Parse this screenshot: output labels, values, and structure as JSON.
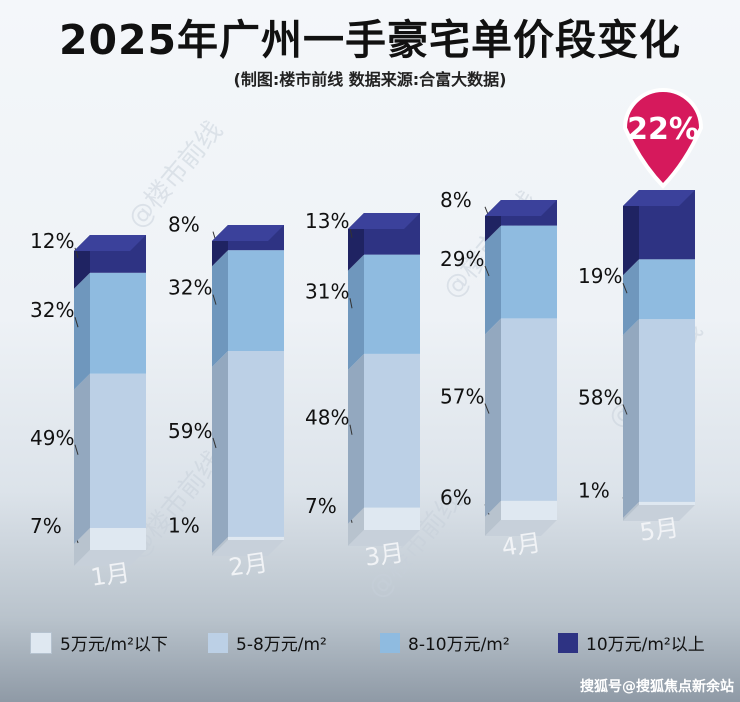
{
  "title": "2025年广州一手豪宅单价段变化",
  "subtitle": "(制图:楼市前线  数据来源:合富大数据)",
  "watermark": "搜狐号@搜狐焦点新余站",
  "bg_watermark": "@楼市前线",
  "highlight": {
    "month_index": 4,
    "label": "22%",
    "color": "#d6195c"
  },
  "colors": {
    "seg0": "#dfe8f1",
    "seg1": "#bcd0e6",
    "seg2": "#8fbbe0",
    "seg3": "#2e3383"
  },
  "legend": [
    {
      "label": "5万元/m²以下",
      "color": "#dfe8f1"
    },
    {
      "label": "5-8万元/m²",
      "color": "#bcd0e6"
    },
    {
      "label": "8-10万元/m²",
      "color": "#8fbbe0"
    },
    {
      "label": "10万元/m²以上",
      "color": "#2e3383"
    }
  ],
  "chart_data": {
    "type": "bar",
    "stacked": true,
    "categories": [
      "1月",
      "2月",
      "3月",
      "4月",
      "5月"
    ],
    "series": [
      {
        "name": "5万元/m²以下",
        "values": [
          7,
          1,
          7,
          6,
          1
        ],
        "labels": [
          "7%",
          "1%",
          "7%",
          "6%",
          "1%"
        ]
      },
      {
        "name": "5-8万元/m²",
        "values": [
          49,
          59,
          48,
          57,
          58
        ],
        "labels": [
          "49%",
          "59%",
          "48%",
          "57%",
          "58%"
        ]
      },
      {
        "name": "8-10万元/m²",
        "values": [
          32,
          32,
          31,
          29,
          19
        ],
        "labels": [
          "32%",
          "32%",
          "31%",
          "29%",
          "19%"
        ]
      },
      {
        "name": "10万元/m²以上",
        "values": [
          12,
          8,
          13,
          8,
          22
        ],
        "labels": [
          "12%",
          "8%",
          "13%",
          "8%",
          "22%"
        ]
      }
    ],
    "ylim": [
      0,
      100
    ],
    "title": "2025年广州一手豪宅单价段变化"
  }
}
